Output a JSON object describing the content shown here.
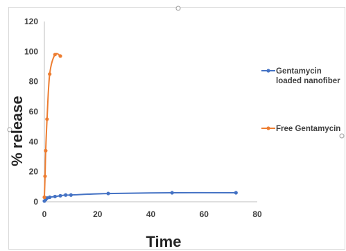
{
  "chart_data": {
    "type": "line",
    "title": "",
    "xlabel": "Time",
    "ylabel": "% release",
    "xlim": [
      0,
      80
    ],
    "ylim": [
      0,
      120
    ],
    "x_ticks": [
      "0",
      "20",
      "40",
      "60",
      "80"
    ],
    "y_ticks": [
      "0",
      "20",
      "40",
      "60",
      "80",
      "100",
      "120"
    ],
    "grid": false,
    "legend": "right",
    "series": [
      {
        "name": "Gentamycin loaded nanofiber",
        "name_lines": [
          "Gentamycin",
          "loaded nanofiber"
        ],
        "color": "#4472c4",
        "x": [
          0,
          0.5,
          1,
          2,
          4,
          6,
          8,
          10,
          24,
          48,
          72
        ],
        "y": [
          0.5,
          1.5,
          2.5,
          3,
          3.5,
          4,
          4.5,
          4.5,
          5.5,
          6,
          6
        ]
      },
      {
        "name": "Free Gentamycin",
        "name_lines": [
          "Free Gentamycin"
        ],
        "color": "#ed7d31",
        "x": [
          0,
          0.25,
          0.5,
          1,
          2,
          4,
          6
        ],
        "y": [
          3,
          17,
          34,
          55,
          85,
          98,
          97
        ]
      }
    ]
  }
}
